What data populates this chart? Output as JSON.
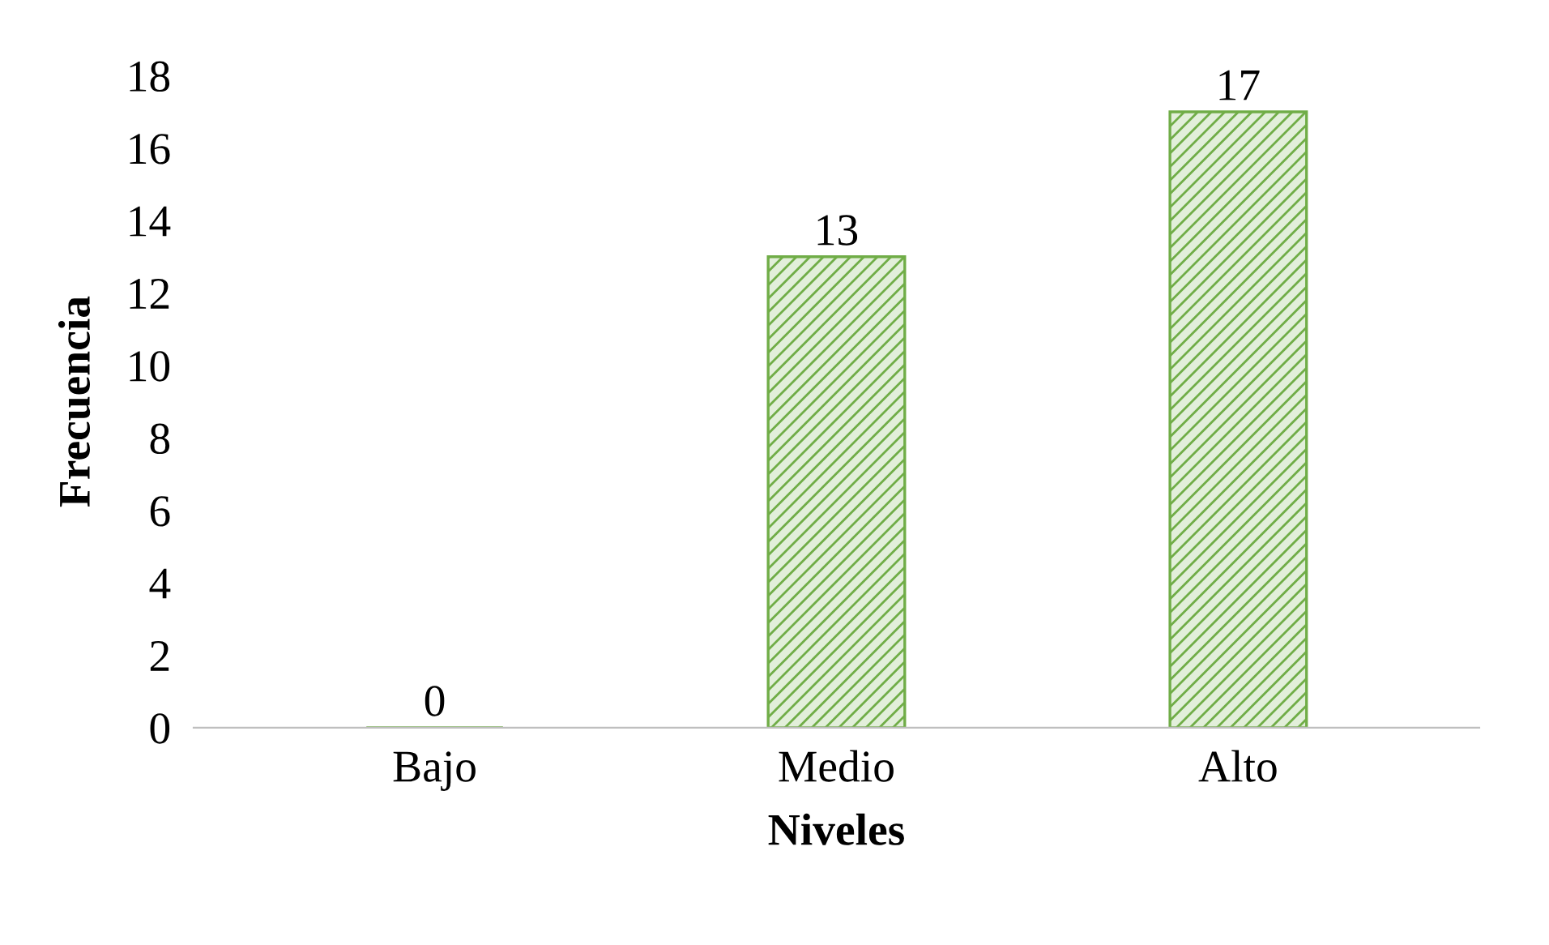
{
  "chart_data": {
    "type": "bar",
    "xlabel": "Niveles",
    "ylabel": "Frecuencia",
    "categories": [
      "Bajo",
      "Medio",
      "Alto"
    ],
    "values": [
      0,
      13,
      17
    ],
    "color": "#70ad47",
    "ylim": [
      0,
      18
    ],
    "yticks": [
      0,
      2,
      4,
      6,
      8,
      10,
      12,
      14,
      16,
      18
    ],
    "data_labels": true,
    "grid": false,
    "legend": false
  }
}
